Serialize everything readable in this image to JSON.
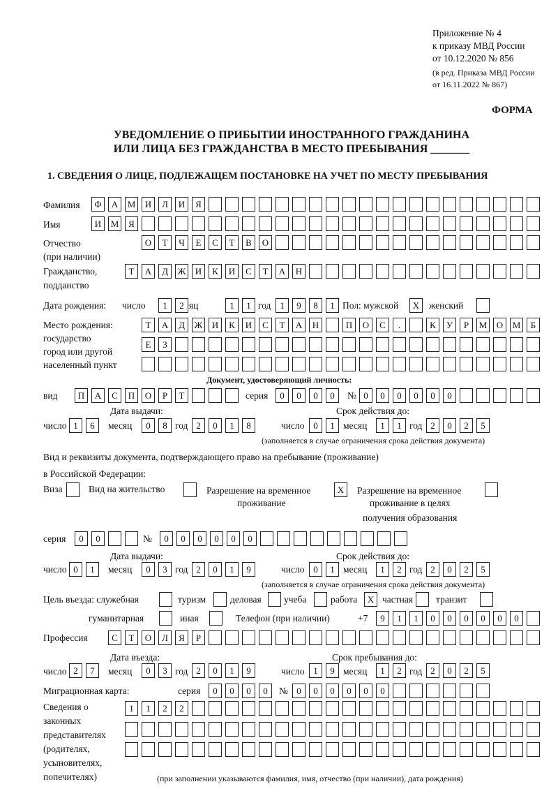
{
  "header": {
    "appendix": "Приложение № 4",
    "order": "к приказу МВД России",
    "order_date": "от 10.12.2020 № 856",
    "edit1": "(в ред. Приказа МВД России",
    "edit2": "от 16.11.2022 № 867)",
    "form": "ФОРМА"
  },
  "title": {
    "line1": "УВЕДОМЛЕНИЕ О ПРИБЫТИИ ИНОСТРАННОГО ГРАЖДАНИНА",
    "line2": "ИЛИ ЛИЦА БЕЗ ГРАЖДАНСТВА В МЕСТО ПРЕБЫВАНИЯ _______"
  },
  "section1": "1. СВЕДЕНИЯ О ЛИЦЕ, ПОДЛЕЖАЩЕМ ПОСТАНОВКЕ НА УЧЕТ ПО МЕСТУ ПРЕБЫВАНИЯ",
  "labels": {
    "surname": "Фамилия",
    "name": "Имя",
    "patronymic": "Отчество",
    "patronymic2": "(при наличии)",
    "citizenship": "Гражданство,",
    "citizenship2": "подданство",
    "birth_date": "Дата рождения:",
    "day": "число",
    "month": "месяц",
    "year": "год",
    "sex": "Пол: мужской",
    "female": "женский",
    "birth_place": "Место рождения:",
    "bp2": "государство",
    "bp3": "город или другой",
    "bp4": "населенный пункт",
    "id_doc": "Документ, удостоверяющий личность:",
    "kind": "вид",
    "series": "серия",
    "number": "№",
    "issue_date": "Дата выдачи:",
    "valid_until": "Срок действия до:",
    "valid_note": "(заполняется в случае ограничения срока действия документа)",
    "right_doc1": "Вид и реквизиты документа, подтверждающего право на пребывание (проживание)",
    "right_doc2": "в Российской Федерации:",
    "visa": "Виза",
    "residence": "Вид на жительство",
    "trp1": "Разрешение на временное",
    "trp2": "проживание",
    "trpe1": "Разрешение на временное",
    "trpe2": "проживание в целях",
    "trpe3": "получения образования",
    "purpose": "Цель въезда: служебная",
    "tourism": "туризм",
    "business": "деловая",
    "study": "учеба",
    "work": "работа",
    "private": "частная",
    "transit": "транзит",
    "humanitarian": "гуманитарная",
    "other": "иная",
    "phone": "Телефон (при наличии)",
    "phone_prefix": "+7",
    "profession": "Профессия",
    "entry_date": "Дата въезда:",
    "stay_until": "Срок пребывания до:",
    "migration_card": "Миграционная карта:",
    "rep1": "Сведения о",
    "rep2": "законных",
    "rep3": "представителях",
    "rep4": "(родителях,",
    "rep5": "усыновителях,",
    "rep6": "попечителях)",
    "rep_note": "(при заполнении указываются фамилия, имя, отчество (при наличии), дата рождения)"
  },
  "fields": {
    "surname": "ФАМИЛИЯ",
    "name": "ИМЯ",
    "patronymic": "ОТЧЕСТВО",
    "citizenship": "ТАДЖИКИСТАН",
    "birth_day": "12",
    "birth_month": "11",
    "birth_year": "1981",
    "sex_male": "X",
    "sex_female": "",
    "birth_place_1": "ТАДЖИКИСТАН ПОС. КУРМОМБ",
    "birth_place_2": "ЕЗ",
    "birth_place_3": "",
    "doc_kind": "ПАСПОРТ",
    "doc_series": "0000",
    "doc_number": "000000",
    "doc_issue_day": "16",
    "doc_issue_month": "08",
    "doc_issue_year": "2018",
    "doc_valid_day": "01",
    "doc_valid_month": "11",
    "doc_valid_year": "2025",
    "visa": "",
    "residence_permit": "",
    "temp_residence": "X",
    "temp_residence_edu": "",
    "right_series": "00",
    "right_number": "000000",
    "right_issue_day": "01",
    "right_issue_month": "03",
    "right_issue_year": "2019",
    "right_valid_day": "01",
    "right_valid_month": "12",
    "right_valid_year": "2025",
    "p_service": "",
    "p_tourism": "",
    "p_business": "",
    "p_study": "",
    "p_work": "X",
    "p_private": "",
    "p_transit": "",
    "p_humanitarian": "",
    "p_other": "",
    "phone": "911000000",
    "profession": "СТОЛЯР",
    "entry_day": "27",
    "entry_month": "03",
    "entry_year": "2019",
    "stay_day": "19",
    "stay_month": "12",
    "stay_year": "2025",
    "mc_series": "0000",
    "mc_number": "000000",
    "rep_1": "1122",
    "rep_2": "",
    "rep_3": ""
  }
}
